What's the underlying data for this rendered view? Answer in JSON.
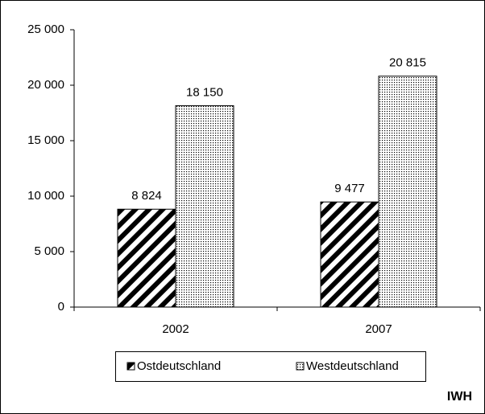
{
  "chart_data": {
    "type": "bar",
    "categories": [
      "2002",
      "2007"
    ],
    "series": [
      {
        "name": "Ostdeutschland",
        "color": "#000000",
        "values": [
          8824,
          9477
        ],
        "value_labels": [
          "8 824",
          "9 477"
        ]
      },
      {
        "name": "Westdeutschland",
        "color": "#000000",
        "values": [
          18150,
          20815
        ],
        "value_labels": [
          "18 150",
          "20 815"
        ]
      }
    ],
    "ylim": [
      0,
      25000
    ],
    "yticks": [
      0,
      {
        "value": 5000,
        "label": "5 000"
      },
      {
        "value": 10000,
        "label": "10 000"
      },
      {
        "value": 15000,
        "label": "15 000"
      },
      {
        "value": 20000,
        "label": "20 000"
      },
      {
        "value": 25000,
        "label": "25 000"
      }
    ],
    "annotation": "IWH"
  }
}
